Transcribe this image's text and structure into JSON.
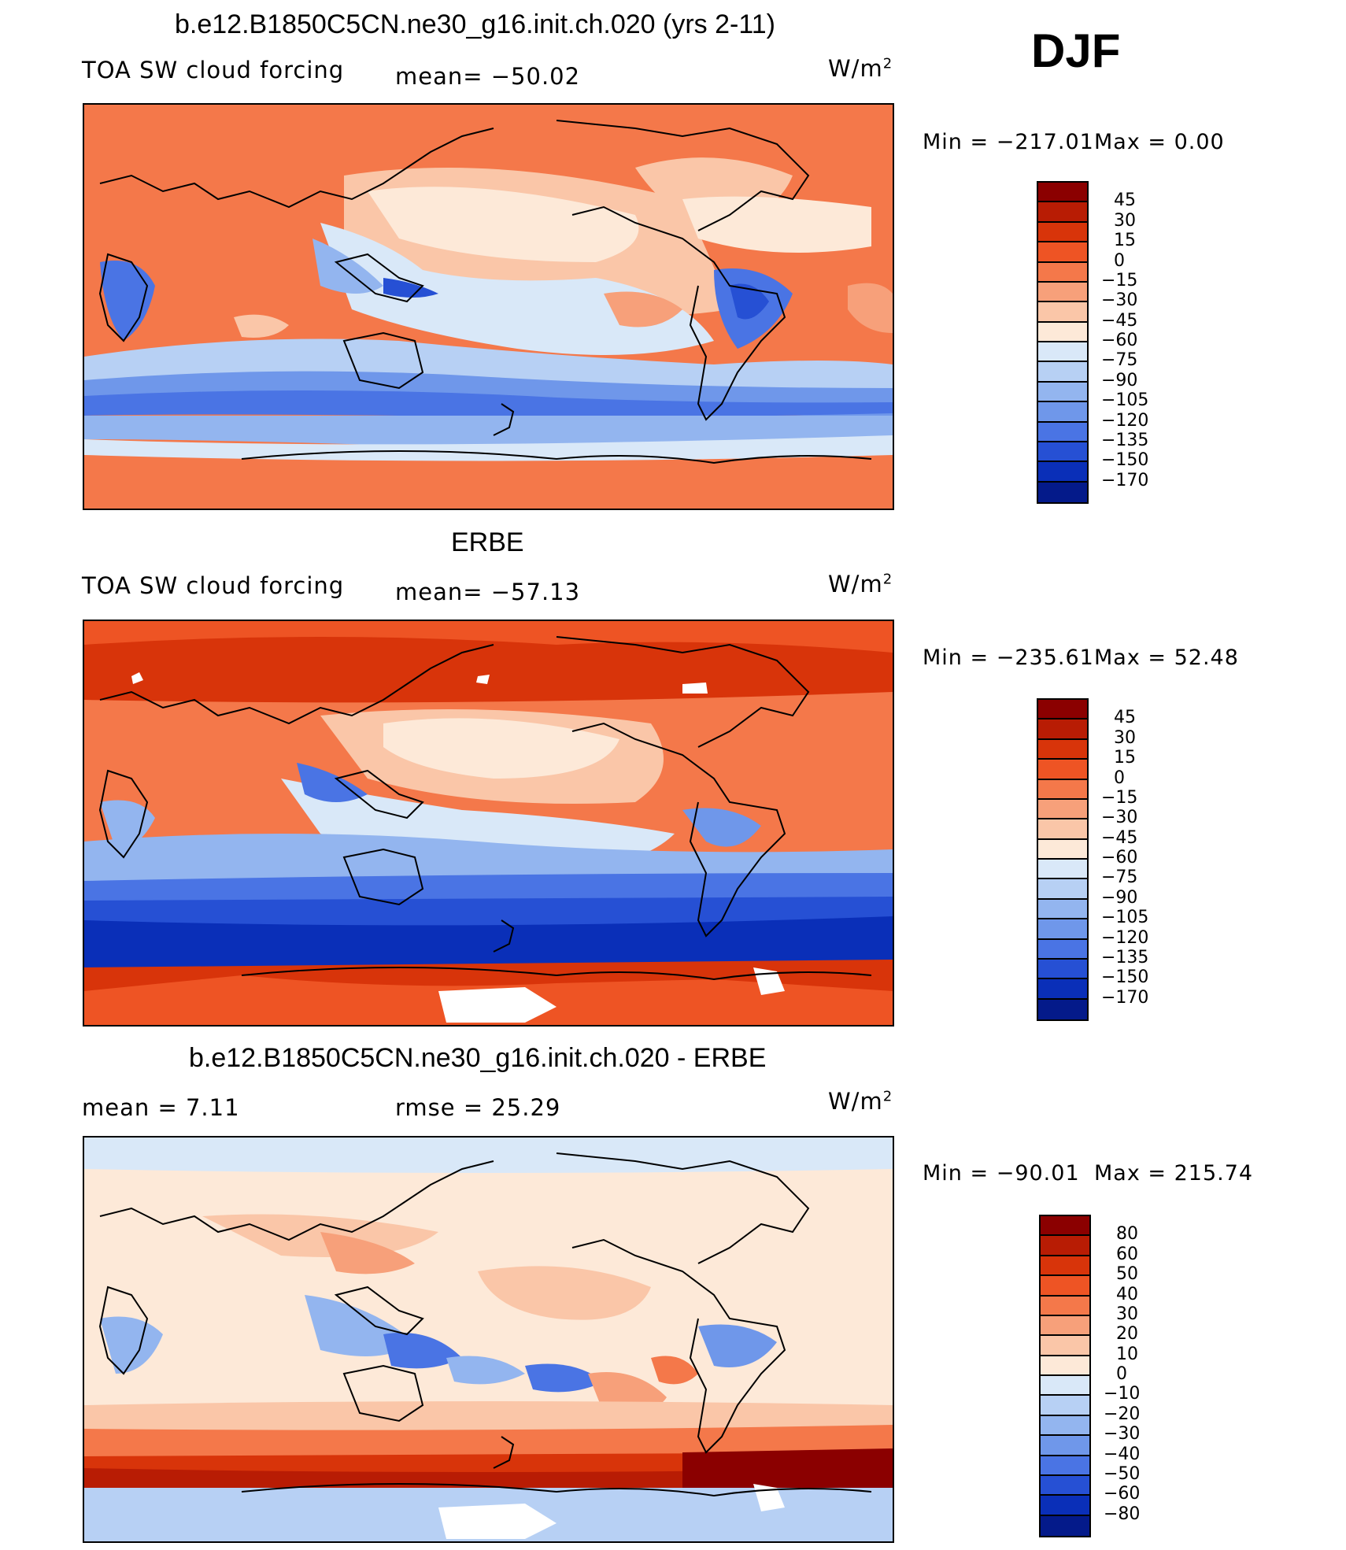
{
  "season": "DJF",
  "units_base": "W/m",
  "units_exp": "2",
  "panels": [
    {
      "title": "b.e12.B1850C5CN.ne30_g16.init.ch.020 (yrs 2-11)",
      "left_label": "TOA SW cloud forcing",
      "center_label": "mean= −50.02",
      "min_label": "Min  =  −217.01",
      "max_label": "Max  =     0.00",
      "colorbar": {
        "levels": [
          "45",
          "30",
          "15",
          "0",
          "−15",
          "−30",
          "−45",
          "−60",
          "−75",
          "−90",
          "−105",
          "−120",
          "−135",
          "−150",
          "−170"
        ],
        "colors": [
          "#8b0000",
          "#b81c04",
          "#d8340a",
          "#ee5424",
          "#f4784a",
          "#f7a07a",
          "#fac6a8",
          "#fde9d8",
          "#d9e8f8",
          "#b7d0f4",
          "#93b5ef",
          "#6f97ea",
          "#4a74e4",
          "#2650d4",
          "#0a2fb8",
          "#041a8a"
        ]
      }
    },
    {
      "title": "ERBE",
      "left_label": "TOA SW cloud forcing",
      "center_label": "mean= −57.13",
      "min_label": "Min  =  −235.61",
      "max_label": "Max  =   52.48",
      "colorbar": {
        "levels": [
          "45",
          "30",
          "15",
          "0",
          "−15",
          "−30",
          "−45",
          "−60",
          "−75",
          "−90",
          "−105",
          "−120",
          "−135",
          "−150",
          "−170"
        ],
        "colors": [
          "#8b0000",
          "#b81c04",
          "#d8340a",
          "#ee5424",
          "#f4784a",
          "#f7a07a",
          "#fac6a8",
          "#fde9d8",
          "#d9e8f8",
          "#b7d0f4",
          "#93b5ef",
          "#6f97ea",
          "#4a74e4",
          "#2650d4",
          "#0a2fb8",
          "#041a8a"
        ]
      }
    },
    {
      "title": "b.e12.B1850C5CN.ne30_g16.init.ch.020 - ERBE",
      "left_label": "mean =     7.11",
      "center_label": "rmse =   25.29",
      "min_label": "Min  =  −90.01",
      "max_label": "Max  =  215.74",
      "colorbar": {
        "levels": [
          "80",
          "60",
          "50",
          "40",
          "30",
          "20",
          "10",
          "0",
          "−10",
          "−20",
          "−30",
          "−40",
          "−50",
          "−60",
          "−80"
        ],
        "colors": [
          "#8b0000",
          "#b81c04",
          "#d8340a",
          "#ee5424",
          "#f4784a",
          "#f7a07a",
          "#fac6a8",
          "#fde9d8",
          "#d9e8f8",
          "#b7d0f4",
          "#93b5ef",
          "#6f97ea",
          "#4a74e4",
          "#2650d4",
          "#0a2fb8",
          "#041a8a"
        ]
      }
    }
  ]
}
